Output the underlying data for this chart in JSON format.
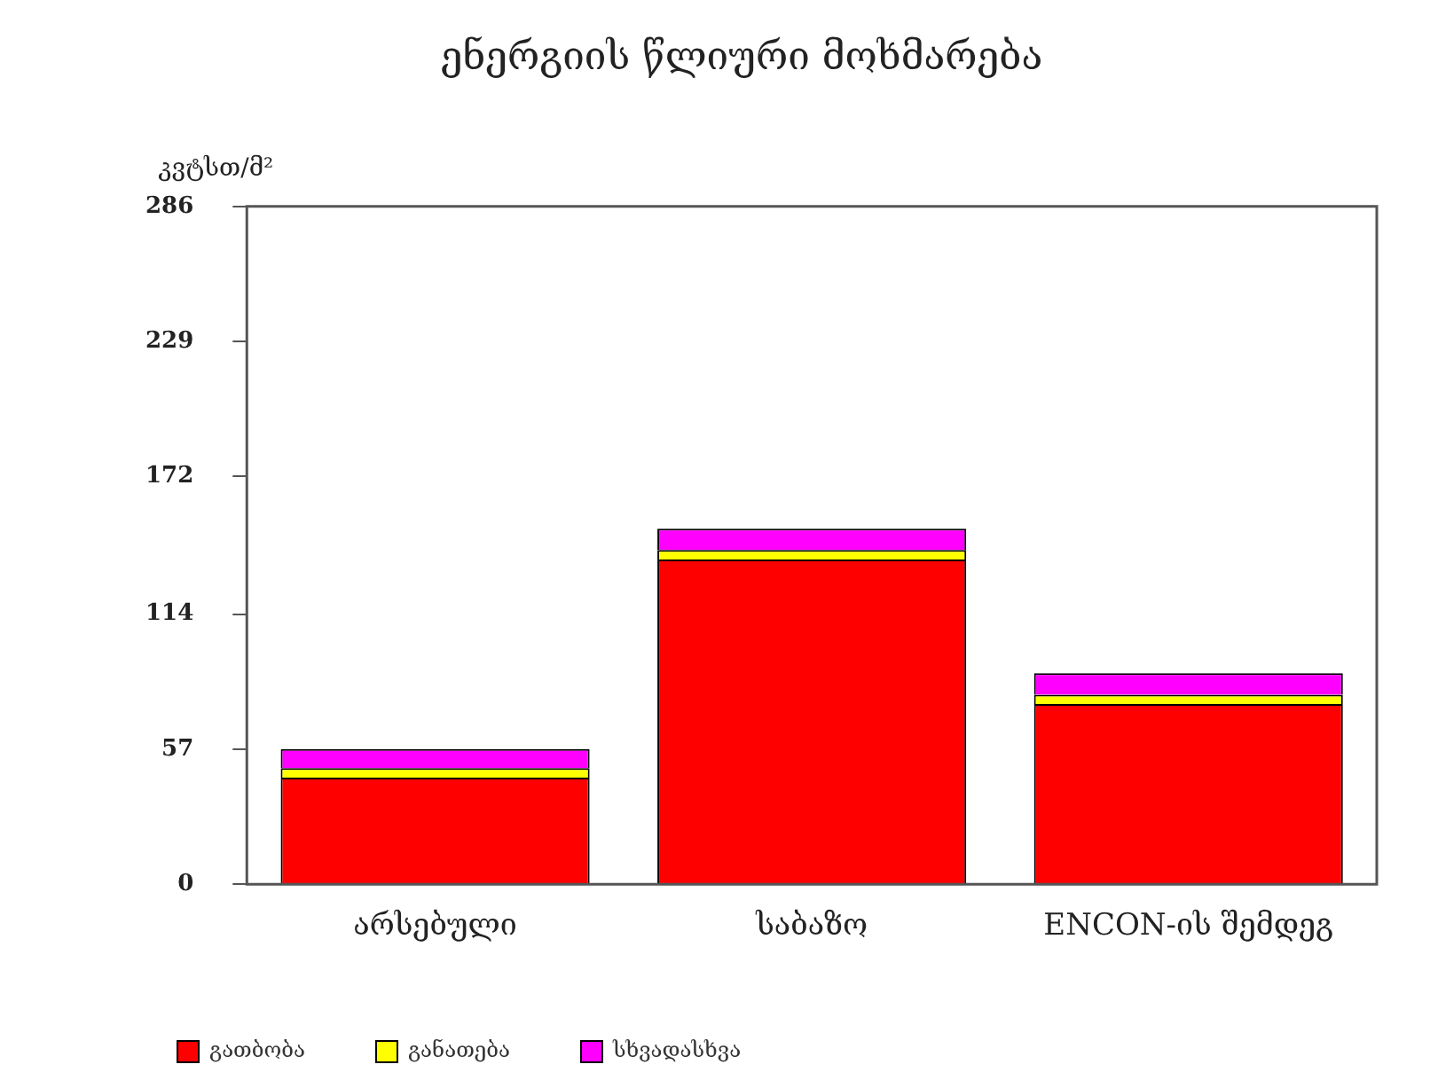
{
  "chart_data": {
    "type": "bar",
    "title": "ენერგიის წლიური მოხმარება",
    "ylabel": "კვტსთ/მ²",
    "categories": [
      "არსებული",
      "საბაზო",
      "ENCON-ის შემდეგ"
    ],
    "stacked": true,
    "series": [
      {
        "name": "გათბობა",
        "color": "#ff0000",
        "values": [
          45,
          137,
          76
        ]
      },
      {
        "name": "განათება",
        "color": "#ffff00",
        "values": [
          4,
          4,
          4
        ]
      },
      {
        "name": "სხვადასხვა",
        "color": "#ff00ff",
        "values": [
          8,
          9,
          9
        ]
      }
    ],
    "ylim": [
      0,
      286
    ],
    "yticks": [
      0,
      57,
      114,
      172,
      229,
      286
    ],
    "grid": false,
    "legend": "bottom"
  }
}
